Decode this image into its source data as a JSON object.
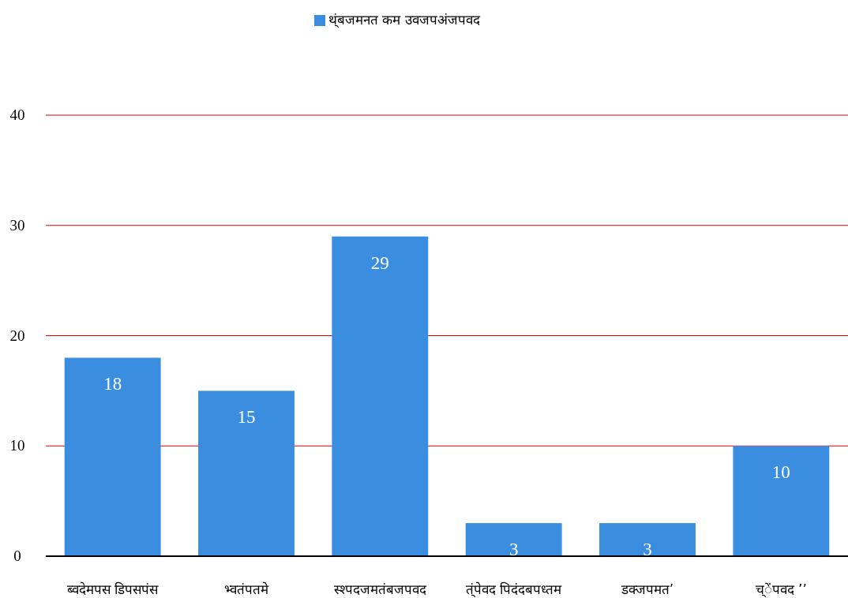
{
  "chart_data": {
    "type": "bar",
    "categories": [
      "ब्वदेमपस डिपसपंस",
      "भ्वतंपतमे",
      "स्श्पदजमतंबजपवद",
      "त्ंपेवद पिदंदबपध्तम",
      "डक्जपमत’",
      "च्ेंपवद ’’"
    ],
    "series": [
      {
        "name": "थ्ंबजमनत कम उवजपअंजपवद",
        "color": "#3b8de0",
        "values": [
          18,
          15,
          29,
          3,
          3,
          10
        ]
      }
    ],
    "ylim": [
      0,
      40
    ],
    "yticks": [
      0,
      10,
      20,
      30,
      40
    ],
    "grid": "y",
    "legend": "top",
    "data_labels": true
  }
}
